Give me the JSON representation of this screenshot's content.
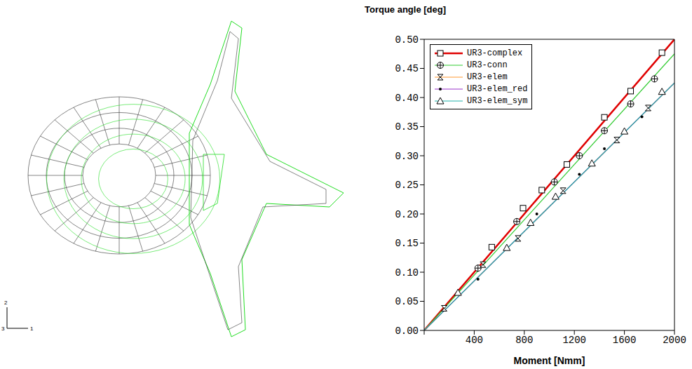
{
  "chart_data": {
    "type": "line",
    "title": "Torque angle [deg]",
    "x_label": "Moment [Nmm]",
    "xlim": [
      0,
      2000
    ],
    "xticks": [
      0,
      400,
      800,
      1200,
      1600,
      2000
    ],
    "ylim": [
      0,
      0.5
    ],
    "yticks": [
      {
        "value": 0,
        "label": "0.00"
      },
      {
        "value": 0.05,
        "label": "0.05"
      },
      {
        "value": 0.1,
        "label": "0.10"
      },
      {
        "value": 0.15,
        "label": "0.15"
      },
      {
        "value": 0.2,
        "label": "0.20"
      },
      {
        "value": 0.25,
        "label": "0.25"
      },
      {
        "value": 0.3,
        "label": "0.30"
      },
      {
        "value": 0.35,
        "label": "0.35"
      },
      {
        "value": 0.4,
        "label": "0.40"
      },
      {
        "value": 0.45,
        "label": "0.45"
      },
      {
        "value": 0.5,
        "label": "0.50"
      }
    ],
    "legend": "upper left",
    "grid": false,
    "series": [
      {
        "name": "UR3-complex",
        "color": "#e00000",
        "marker": "square",
        "line_x": [
          0,
          2000
        ],
        "line_values": [
          0,
          0.5
        ],
        "x": [
          540,
          790,
          940,
          1140,
          1440,
          1650,
          1900
        ],
        "values": [
          0.143,
          0.21,
          0.241,
          0.285,
          0.366,
          0.411,
          0.477
        ]
      },
      {
        "name": "UR3-conn",
        "color": "#33cc33",
        "marker": "circle_plus",
        "line_x": [
          0,
          2000
        ],
        "line_values": [
          0,
          0.475
        ],
        "x": [
          430,
          740,
          1040,
          1240,
          1440,
          1650,
          1840
        ],
        "values": [
          0.107,
          0.187,
          0.255,
          0.3,
          0.343,
          0.389,
          0.432
        ]
      },
      {
        "name": "UR3-elem",
        "color": "#ff9933",
        "marker": "hourglass",
        "line_x": [
          0,
          2000
        ],
        "line_values": [
          0,
          0.425
        ],
        "x": [
          160,
          470,
          750,
          1110,
          1540,
          1790
        ],
        "values": [
          0.038,
          0.113,
          0.158,
          0.24,
          0.327,
          0.382
        ]
      },
      {
        "name": "UR3-elem_red",
        "color": "#9933cc",
        "marker": "dot",
        "line_x": [
          0,
          2000
        ],
        "line_values": [
          0,
          0.425
        ],
        "x": [
          430,
          900,
          1240,
          1440,
          1740
        ],
        "values": [
          0.088,
          0.2,
          0.268,
          0.312,
          0.367
        ]
      },
      {
        "name": "UR3-elem_sym",
        "color": "#20b2aa",
        "marker": "triangle",
        "line_x": [
          0,
          2000
        ],
        "line_values": [
          0,
          0.425
        ],
        "x": [
          270,
          660,
          850,
          1050,
          1340,
          1600,
          1900
        ],
        "values": [
          0.065,
          0.142,
          0.185,
          0.23,
          0.287,
          0.342,
          0.41
        ]
      }
    ]
  },
  "figure": {
    "triad_labels": [
      "2",
      "3",
      "1"
    ]
  }
}
